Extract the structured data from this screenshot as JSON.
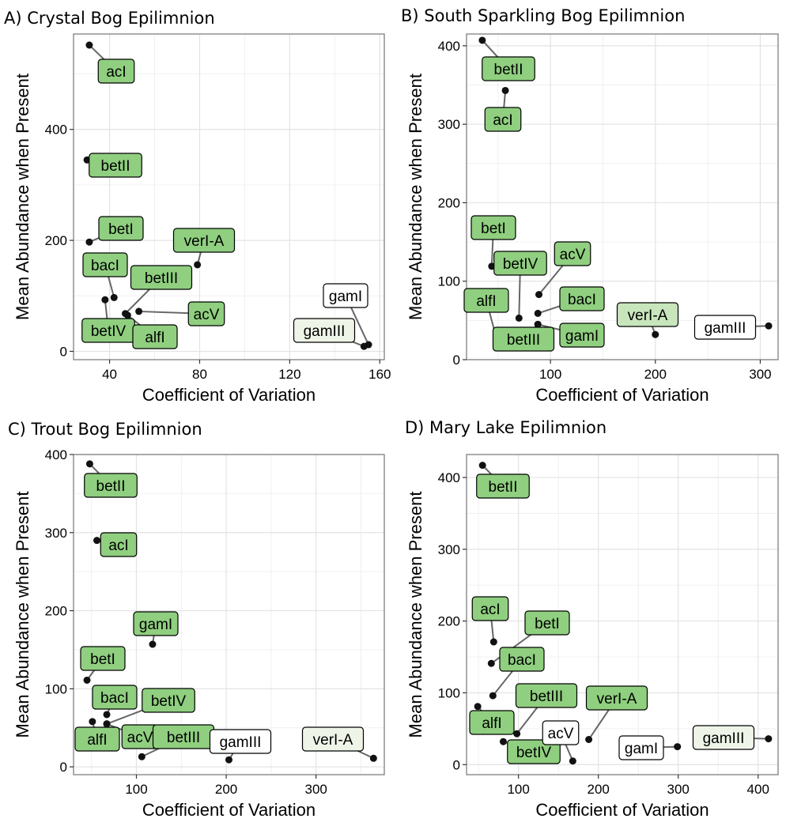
{
  "chart_data": [
    {
      "type": "scatter",
      "title": "A) Crystal Bog Epilimnion",
      "xlabel": "Coefficient of Variation",
      "ylabel": "Mean Abundance when Present",
      "xlim": [
        24,
        162
      ],
      "ylim": [
        -15,
        572
      ],
      "xticks": [
        40,
        80,
        120,
        160
      ],
      "yticks": [
        0,
        200,
        400
      ],
      "grid": true,
      "points": [
        {
          "label": "acI",
          "x": 31,
          "y": 552,
          "fill": "#8fcf7f"
        },
        {
          "label": "betII",
          "x": 30,
          "y": 345,
          "fill": "#8fcf7f"
        },
        {
          "label": "betI",
          "x": 31,
          "y": 197,
          "fill": "#8fcf7f"
        },
        {
          "label": "verI-A",
          "x": 79,
          "y": 156,
          "fill": "#8fcf7f"
        },
        {
          "label": "bacI",
          "x": 42,
          "y": 97,
          "fill": "#8fcf7f"
        },
        {
          "label": "betIII",
          "x": 47,
          "y": 68,
          "fill": "#8fcf7f"
        },
        {
          "label": "acV",
          "x": 53,
          "y": 72,
          "fill": "#8fcf7f"
        },
        {
          "label": "betIV",
          "x": 38,
          "y": 93,
          "fill": "#8fcf7f"
        },
        {
          "label": "alfI",
          "x": 48,
          "y": 65,
          "fill": "#8fcf7f"
        },
        {
          "label": "gamI",
          "x": 155,
          "y": 12,
          "fill": "#ffffff"
        },
        {
          "label": "gamIII",
          "x": 153,
          "y": 9,
          "fill": "#eef5e8"
        }
      ]
    },
    {
      "type": "scatter",
      "title": "B) South Sparkling Bog Epilimnion",
      "xlabel": "Coefficient of Variation",
      "ylabel": "Mean Abundance when Present",
      "xlim": [
        20,
        317
      ],
      "ylim": [
        0,
        415
      ],
      "xticks": [
        100,
        200,
        300
      ],
      "yticks": [
        0,
        100,
        200,
        300,
        400
      ],
      "grid": true,
      "points": [
        {
          "label": "betII",
          "x": 35,
          "y": 407,
          "fill": "#8fcf7f"
        },
        {
          "label": "acI",
          "x": 57,
          "y": 343,
          "fill": "#8fcf7f"
        },
        {
          "label": "betI",
          "x": 44,
          "y": 119,
          "fill": "#8fcf7f"
        },
        {
          "label": "betIV",
          "x": 70,
          "y": 53,
          "fill": "#8fcf7f"
        },
        {
          "label": "acV",
          "x": 89,
          "y": 83,
          "fill": "#8fcf7f"
        },
        {
          "label": "alfI",
          "x": 50,
          "y": 20,
          "fill": "#8fcf7f"
        },
        {
          "label": "bacI",
          "x": 88,
          "y": 59,
          "fill": "#8fcf7f"
        },
        {
          "label": "betIII",
          "x": 88,
          "y": 45,
          "fill": "#8fcf7f"
        },
        {
          "label": "gamI",
          "x": 88,
          "y": 45,
          "fill": "#8fcf7f"
        },
        {
          "label": "verI-A",
          "x": 200,
          "y": 32,
          "fill": "#c8e6bc"
        },
        {
          "label": "gamIII",
          "x": 308,
          "y": 43,
          "fill": "#ffffff"
        }
      ]
    },
    {
      "type": "scatter",
      "title": "C) Trout Bog Epilimnion",
      "xlabel": "Coefficient of Variation",
      "ylabel": "Mean Abundance when Present",
      "xlim": [
        30,
        376
      ],
      "ylim": [
        -10,
        400
      ],
      "xticks": [
        100,
        200,
        300
      ],
      "yticks": [
        0,
        100,
        200,
        300,
        400
      ],
      "grid": true,
      "points": [
        {
          "label": "betII",
          "x": 48,
          "y": 388,
          "fill": "#8fcf7f"
        },
        {
          "label": "acI",
          "x": 56,
          "y": 290,
          "fill": "#8fcf7f"
        },
        {
          "label": "gamI",
          "x": 118,
          "y": 157,
          "fill": "#8fcf7f"
        },
        {
          "label": "betI",
          "x": 45,
          "y": 111,
          "fill": "#8fcf7f"
        },
        {
          "label": "bacI",
          "x": 67,
          "y": 67,
          "fill": "#8fcf7f"
        },
        {
          "label": "betIV",
          "x": 67,
          "y": 55,
          "fill": "#8fcf7f"
        },
        {
          "label": "alfI",
          "x": 51,
          "y": 58,
          "fill": "#8fcf7f"
        },
        {
          "label": "acV",
          "x": 67,
          "y": 55,
          "fill": "#8fcf7f"
        },
        {
          "label": "betIII",
          "x": 106,
          "y": 13,
          "fill": "#8fcf7f"
        },
        {
          "label": "gamIII",
          "x": 203,
          "y": 9,
          "fill": "#ffffff"
        },
        {
          "label": "verI-A",
          "x": 364,
          "y": 11,
          "fill": "#eef5e8"
        }
      ]
    },
    {
      "type": "scatter",
      "title": "D) Mary Lake Epilimnion",
      "xlabel": "Coefficient of Variation",
      "ylabel": "Mean Abundance when Present",
      "xlim": [
        35,
        425
      ],
      "ylim": [
        -14,
        432
      ],
      "xticks": [
        100,
        200,
        300,
        400
      ],
      "yticks": [
        0,
        100,
        200,
        300,
        400
      ],
      "grid": true,
      "points": [
        {
          "label": "betII",
          "x": 55,
          "y": 417,
          "fill": "#8fcf7f"
        },
        {
          "label": "acI",
          "x": 69,
          "y": 171,
          "fill": "#8fcf7f"
        },
        {
          "label": "betI",
          "x": 66,
          "y": 141,
          "fill": "#8fcf7f"
        },
        {
          "label": "bacI",
          "x": 68,
          "y": 96,
          "fill": "#8fcf7f"
        },
        {
          "label": "betIII",
          "x": 98,
          "y": 43,
          "fill": "#8fcf7f"
        },
        {
          "label": "alfI",
          "x": 49,
          "y": 81,
          "fill": "#8fcf7f"
        },
        {
          "label": "betIV",
          "x": 81,
          "y": 32,
          "fill": "#8fcf7f"
        },
        {
          "label": "acV",
          "x": 168,
          "y": 5,
          "fill": "#ffffff"
        },
        {
          "label": "verI-A",
          "x": 188,
          "y": 35,
          "fill": "#8fcf7f"
        },
        {
          "label": "gamI",
          "x": 299,
          "y": 25,
          "fill": "#ffffff"
        },
        {
          "label": "gamIII",
          "x": 413,
          "y": 36,
          "fill": "#eef5e8"
        }
      ]
    }
  ]
}
